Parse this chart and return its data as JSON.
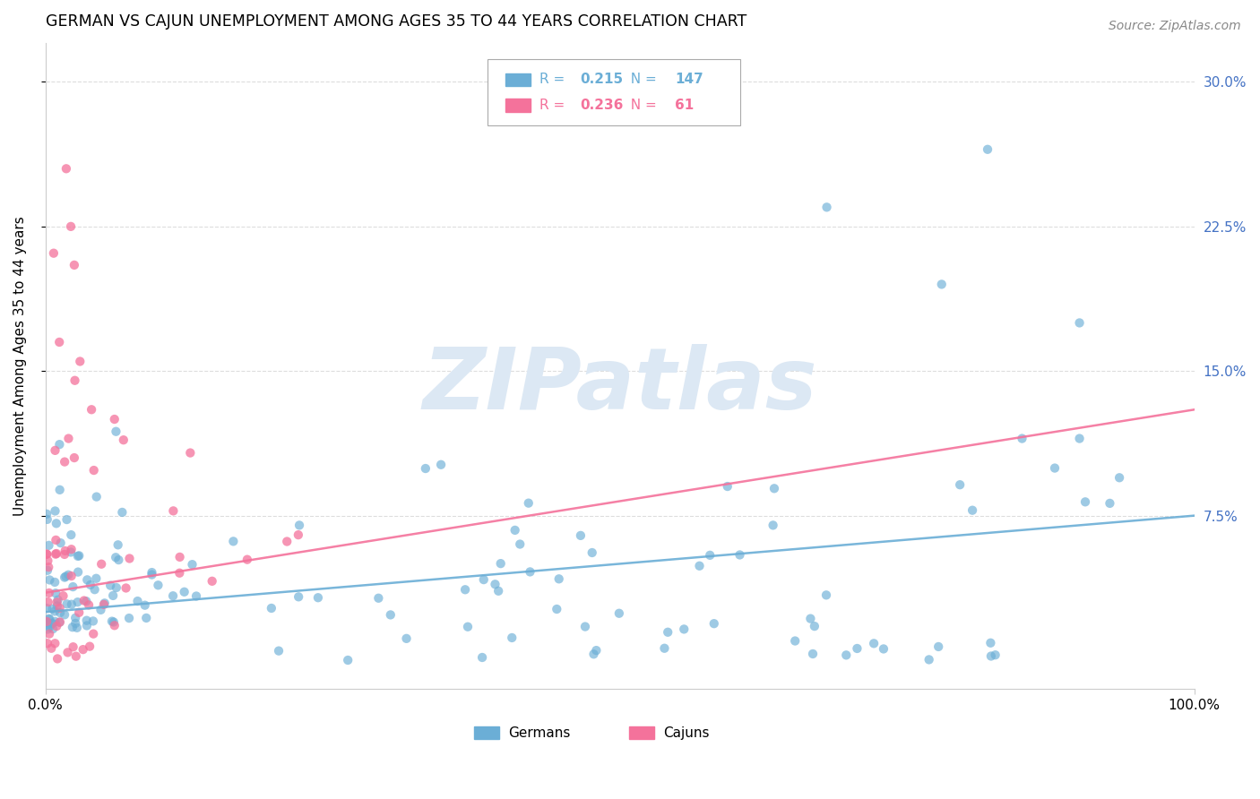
{
  "title": "GERMAN VS CAJUN UNEMPLOYMENT AMONG AGES 35 TO 44 YEARS CORRELATION CHART",
  "source": "Source: ZipAtlas.com",
  "ylabel": "Unemployment Among Ages 35 to 44 years",
  "xlim": [
    0.0,
    1.0
  ],
  "ylim": [
    -0.015,
    0.32
  ],
  "xticks": [
    0.0,
    1.0
  ],
  "xticklabels": [
    "0.0%",
    "100.0%"
  ],
  "yticks_right": [
    0.075,
    0.15,
    0.225,
    0.3
  ],
  "yticklabels_right": [
    "7.5%",
    "15.0%",
    "22.5%",
    "30.0%"
  ],
  "german_color": "#6baed6",
  "cajun_color": "#f4729b",
  "right_tick_color": "#4472c4",
  "german_R": 0.215,
  "german_N": 147,
  "cajun_R": 0.236,
  "cajun_N": 61,
  "watermark": "ZIPatlas",
  "watermark_color": "#dce8f4",
  "legend_label_german": "Germans",
  "legend_label_cajun": "Cajuns",
  "title_fontsize": 12.5,
  "axis_label_fontsize": 11,
  "tick_fontsize": 11
}
